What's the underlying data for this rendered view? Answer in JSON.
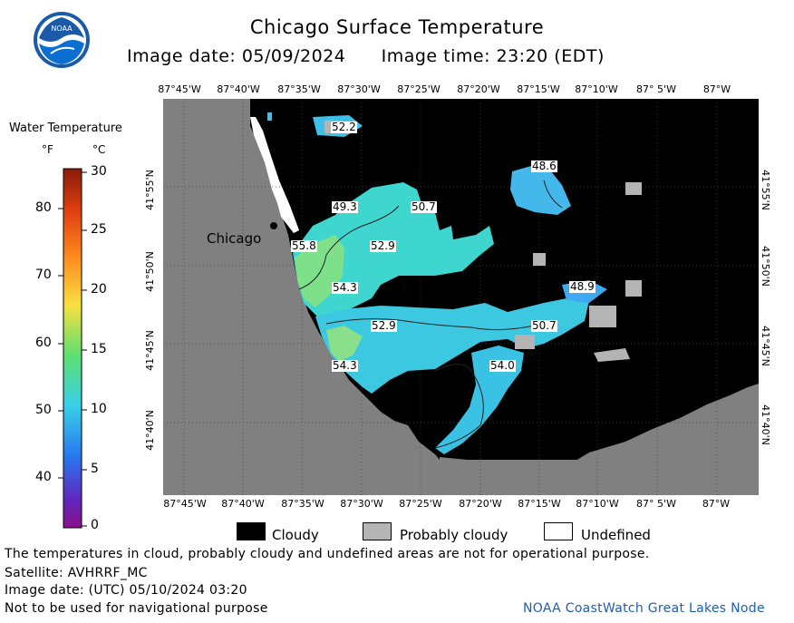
{
  "header": {
    "title": "Chicago Surface Temperature",
    "image_date": "Image date: 05/09/2024",
    "image_time": "Image time: 23:20 (EDT)"
  },
  "logo": {
    "text": "NOAA"
  },
  "map": {
    "lon_labels": [
      "87°45'W",
      "87°40'W",
      "87°35'W",
      "87°30'W",
      "87°25'W",
      "87°20'W",
      "87°15'W",
      "87°10'W",
      "87° 5'W",
      "87°W"
    ],
    "lat_labels_left": [
      "41°55'N",
      "41°50'N",
      "41°45'N",
      "41°40'N"
    ],
    "lat_labels_right": [
      "41°55'N",
      "41°50'N",
      "41°45'N",
      "41°40'N"
    ],
    "city_label": "Chicago",
    "contour_labels": [
      "52.2",
      "48.6",
      "49.3",
      "50.7",
      "55.8",
      "52.9",
      "54.3",
      "48.9",
      "52.9",
      "50.7",
      "54.3",
      "54.0"
    ],
    "colors": {
      "cloudy": "#000000",
      "land": "#808080",
      "probably_cloudy": "#b4b4b4",
      "undefined": "#ffffff"
    }
  },
  "legend": {
    "title": "Water Temperature",
    "unit_f": "°F",
    "unit_c": "°C",
    "f_ticks": [
      "80",
      "70",
      "60",
      "50",
      "40"
    ],
    "c_ticks": [
      "30",
      "25",
      "20",
      "15",
      "10",
      "5",
      "0"
    ]
  },
  "key": {
    "cloudy": "Cloudy",
    "probably_cloudy": "Probably cloudy",
    "undefined": "Undefined"
  },
  "footer": {
    "note": "The temperatures in cloud, probably cloudy and undefined areas are not for operational purpose.",
    "satellite": "Satellite: AVHRRF_MC",
    "utc_date": "Image date: (UTC) 05/10/2024  03:20",
    "nav_warning": "Not to be used for navigational purpose",
    "credit": "NOAA CoastWatch Great Lakes Node"
  }
}
